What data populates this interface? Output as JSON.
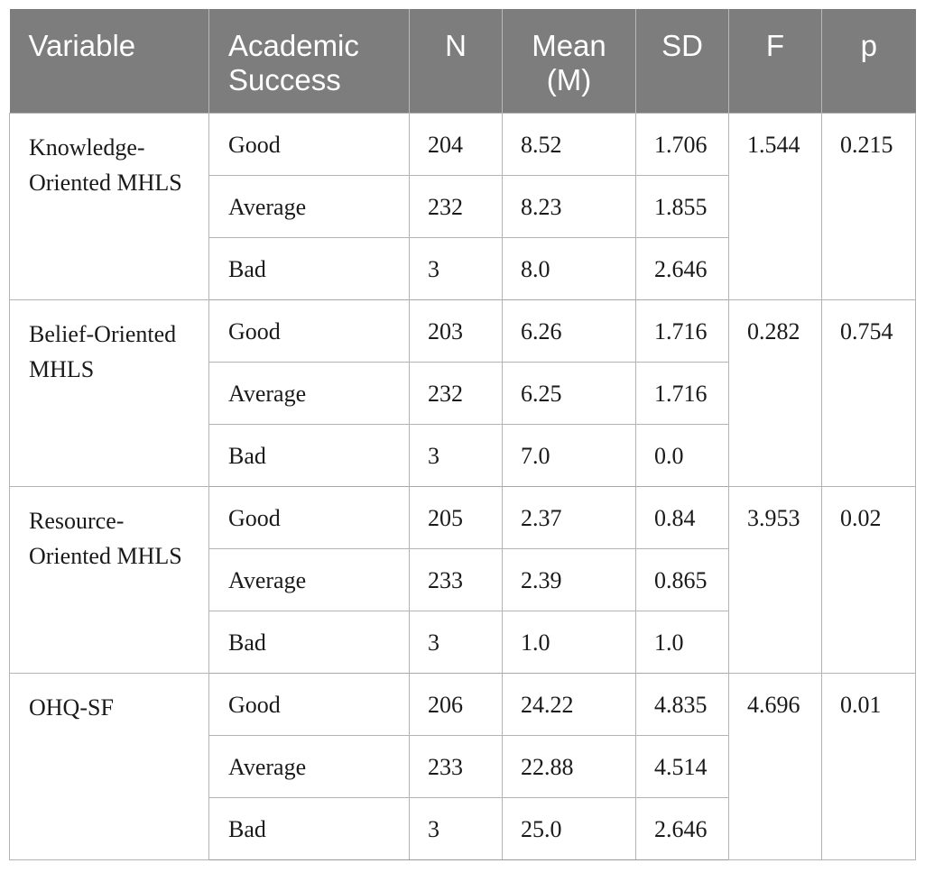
{
  "table": {
    "headers": {
      "variable": "Variable",
      "success": "Academic Success",
      "n": "N",
      "mean": "Mean (M)",
      "sd": "SD",
      "f": "F",
      "p": "p"
    },
    "blocks": [
      {
        "variable": "Knowledge-Oriented MHLS",
        "f": "1.544",
        "p": "0.215",
        "rows": [
          {
            "success": "Good",
            "n": "204",
            "mean": "8.52",
            "sd": "1.706"
          },
          {
            "success": "Average",
            "n": "232",
            "mean": "8.23",
            "sd": "1.855"
          },
          {
            "success": "Bad",
            "n": "3",
            "mean": "8.0",
            "sd": "2.646"
          }
        ]
      },
      {
        "variable": "Belief-Oriented MHLS",
        "f": "0.282",
        "p": "0.754",
        "rows": [
          {
            "success": "Good",
            "n": "203",
            "mean": "6.26",
            "sd": "1.716"
          },
          {
            "success": "Average",
            "n": "232",
            "mean": "6.25",
            "sd": "1.716"
          },
          {
            "success": "Bad",
            "n": "3",
            "mean": "7.0",
            "sd": "0.0"
          }
        ]
      },
      {
        "variable": "Resource-Oriented MHLS",
        "f": "3.953",
        "p": "0.02",
        "rows": [
          {
            "success": "Good",
            "n": "205",
            "mean": "2.37",
            "sd": "0.84"
          },
          {
            "success": "Average",
            "n": "233",
            "mean": "2.39",
            "sd": "0.865"
          },
          {
            "success": "Bad",
            "n": "3",
            "mean": "1.0",
            "sd": "1.0"
          }
        ]
      },
      {
        "variable": "OHQ-SF",
        "f": "4.696",
        "p": "0.01",
        "rows": [
          {
            "success": "Good",
            "n": "206",
            "mean": "24.22",
            "sd": "4.835"
          },
          {
            "success": "Average",
            "n": "233",
            "mean": "22.88",
            "sd": "4.514"
          },
          {
            "success": "Bad",
            "n": "3",
            "mean": "25.0",
            "sd": "2.646"
          }
        ]
      }
    ]
  }
}
